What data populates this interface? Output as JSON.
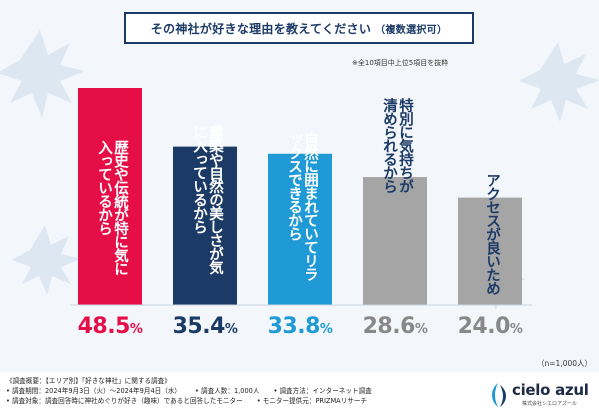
{
  "title": {
    "main": "その神社が好きな理由を教えてください",
    "sub": "（複数選択可）"
  },
  "note": "※全10項目中上位5項目を抜粋",
  "n_label": "（n=1,000人）",
  "chart_data": {
    "type": "bar",
    "categories": [
      "歴史や伝統が特に気に入っているから",
      "建築や自然の美しさが気に入っているから",
      "自然に囲まれていてリラックスできるから",
      "特別に気持ちが清められるから",
      "アクセスが良いため"
    ],
    "values": [
      48.5,
      35.4,
      33.8,
      28.6,
      24.0
    ],
    "value_labels": [
      "48.5",
      "35.4",
      "33.8",
      "28.6",
      "24.0"
    ],
    "unit": "%",
    "colors": [
      "#e60e46",
      "#1c3a66",
      "#1f9ad6",
      "#a5a5a5",
      "#a5a5a5"
    ],
    "label_lines": [
      [
        "歴史や伝統が特に",
        "気に入っているから"
      ],
      [
        "建築や自然の美しさが",
        "気に入っているから"
      ],
      [
        "自然に囲まれていて",
        "リラックスできるから"
      ],
      [
        "特別に気持ちが",
        "清められるから"
      ],
      [
        "アクセスが良いため"
      ]
    ],
    "ylim": [
      0,
      50
    ]
  },
  "footer": {
    "line1": "《調査概要：【エリア別】「好きな神社」に関する調査》",
    "period": "• 調査期間：2024年9月3日（火）～2024年9月4日（水）",
    "count": "• 調査人数：1,000人",
    "method": "• 調査方法：インターネット調査",
    "target": "• 調査対象：調査回答時に神社めぐりが好き（趣味）であると回答したモニター",
    "provider": "• モニター提供元：PRIZMAリサーチ"
  },
  "logo": {
    "name": "cielo azul",
    "sub": "株式会社シエロアズール"
  }
}
